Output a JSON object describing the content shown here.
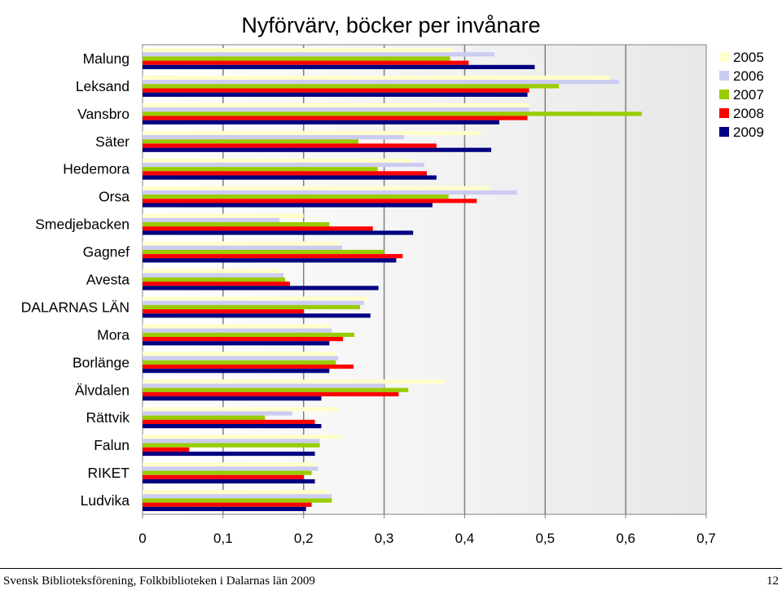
{
  "chart_data": {
    "type": "bar",
    "orientation": "horizontal",
    "title": "Nyförvärv, böcker per invånare",
    "categories": [
      "Malung",
      "Leksand",
      "Vansbro",
      "Säter",
      "Hedemora",
      "Orsa",
      "Smedjebacken",
      "Gagnef",
      "Avesta",
      "DALARNAS LÄN",
      "Mora",
      "Borlänge",
      "Älvdalen",
      "Rättvik",
      "Falun",
      "RIKET",
      "Ludvika"
    ],
    "series": [
      {
        "name": "2005",
        "color": "#FFFFCC",
        "values": [
          0.385,
          0.58,
          0.48,
          0.42,
          0.335,
          0.43,
          0.2,
          0.245,
          0.172,
          0.28,
          0.233,
          0.24,
          0.375,
          0.245,
          0.248,
          0.215,
          0.232
        ]
      },
      {
        "name": "2006",
        "color": "#CCCCF2",
        "values": [
          0.437,
          0.592,
          0.48,
          0.325,
          0.35,
          0.465,
          0.17,
          0.248,
          0.175,
          0.275,
          0.235,
          0.243,
          0.3,
          0.186,
          0.22,
          0.218,
          0.235
        ]
      },
      {
        "name": "2007",
        "color": "#99CC00",
        "values": [
          0.382,
          0.517,
          0.62,
          0.268,
          0.292,
          0.38,
          0.232,
          0.3,
          0.177,
          0.27,
          0.263,
          0.24,
          0.33,
          0.152,
          0.22,
          0.21,
          0.235
        ]
      },
      {
        "name": "2008",
        "color": "#FF0000",
        "values": [
          0.405,
          0.48,
          0.478,
          0.365,
          0.353,
          0.415,
          0.286,
          0.323,
          0.183,
          0.2,
          0.249,
          0.262,
          0.318,
          0.214,
          0.058,
          0.2,
          0.21
        ]
      },
      {
        "name": "2009",
        "color": "#000080",
        "values": [
          0.487,
          0.478,
          0.443,
          0.433,
          0.365,
          0.36,
          0.336,
          0.315,
          0.293,
          0.283,
          0.232,
          0.232,
          0.222,
          0.222,
          0.214,
          0.214,
          0.203
        ]
      }
    ],
    "xlim": [
      0,
      0.7
    ],
    "xticks": [
      "0",
      "0,1",
      "0,2",
      "0,3",
      "0,4",
      "0,5",
      "0,6",
      "0,7"
    ],
    "grid": true,
    "legend_position": "right"
  },
  "footer": {
    "source": "Svensk Biblioteksförening, Folkbiblioteken i Dalarnas län 2009",
    "page_number": "12"
  }
}
